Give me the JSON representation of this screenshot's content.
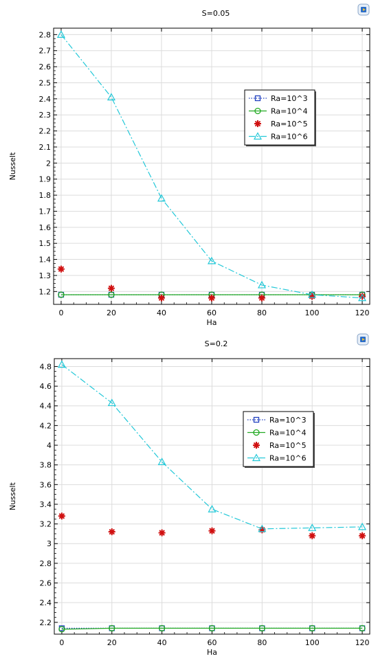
{
  "chart_data": [
    {
      "type": "line",
      "title": "S=0.05",
      "xlabel": "Ha",
      "ylabel": "Nusselt",
      "x": [
        0,
        20,
        40,
        60,
        80,
        100,
        120
      ],
      "xlim": [
        -3,
        123
      ],
      "ylim": [
        1.12,
        2.84
      ],
      "xticks": [
        "0",
        "20",
        "40",
        "60",
        "80",
        "100",
        "120"
      ],
      "yticks": [
        "1.2",
        "1.3",
        "1.4",
        "1.5",
        "1.6",
        "1.7",
        "1.8",
        "1.9",
        "2",
        "2.1",
        "2.2",
        "2.3",
        "2.4",
        "2.5",
        "2.6",
        "2.7",
        "2.8"
      ],
      "grid": true,
      "legend_position": "right",
      "series": [
        {
          "name": "Ra=10^3",
          "values": [
            1.18,
            1.18,
            1.18,
            1.18,
            1.18,
            1.18,
            1.18
          ],
          "color": "#1f3fbf",
          "marker": "square",
          "dash": "1.5,2"
        },
        {
          "name": "Ra=10^4",
          "values": [
            1.18,
            1.18,
            1.18,
            1.18,
            1.18,
            1.18,
            1.18
          ],
          "color": "#22aa22",
          "marker": "circle",
          "dash": ""
        },
        {
          "name": "Ra=10^5",
          "values": [
            1.34,
            1.22,
            1.16,
            1.16,
            1.16,
            1.17,
            1.17
          ],
          "color": "#d01010",
          "marker": "asterisk",
          "dash": "none"
        },
        {
          "name": "Ra=10^6",
          "values": [
            2.8,
            2.41,
            1.78,
            1.39,
            1.24,
            1.18,
            1.16
          ],
          "color": "#22c8d8",
          "marker": "triangle",
          "dash": "9,3,2,3"
        }
      ]
    },
    {
      "type": "line",
      "title": "S=0.2",
      "xlabel": "Ha",
      "ylabel": "Nusselt",
      "x": [
        0,
        20,
        40,
        60,
        80,
        100,
        120
      ],
      "xlim": [
        -3,
        123
      ],
      "ylim": [
        2.08,
        4.88
      ],
      "xticks": [
        "0",
        "20",
        "40",
        "60",
        "80",
        "100",
        "120"
      ],
      "yticks": [
        "2.2",
        "2.4",
        "2.6",
        "2.8",
        "3",
        "3.2",
        "3.4",
        "3.6",
        "3.8",
        "4",
        "4.2",
        "4.4",
        "4.6",
        "4.8"
      ],
      "grid": true,
      "legend_position": "right",
      "series": [
        {
          "name": "Ra=10^3",
          "values": [
            2.14,
            2.14,
            2.14,
            2.14,
            2.14,
            2.14,
            2.14
          ],
          "color": "#1f3fbf",
          "marker": "square",
          "dash": "1.5,2"
        },
        {
          "name": "Ra=10^4",
          "values": [
            2.13,
            2.14,
            2.14,
            2.14,
            2.14,
            2.14,
            2.14
          ],
          "color": "#22aa22",
          "marker": "circle",
          "dash": ""
        },
        {
          "name": "Ra=10^5",
          "values": [
            3.28,
            3.12,
            3.11,
            3.13,
            3.14,
            3.08,
            3.08
          ],
          "color": "#d01010",
          "marker": "asterisk",
          "dash": "none"
        },
        {
          "name": "Ra=10^6",
          "values": [
            4.82,
            4.43,
            3.83,
            3.35,
            3.15,
            3.16,
            3.17
          ],
          "color": "#22c8d8",
          "marker": "triangle",
          "dash": "9,3,2,3"
        }
      ]
    }
  ]
}
